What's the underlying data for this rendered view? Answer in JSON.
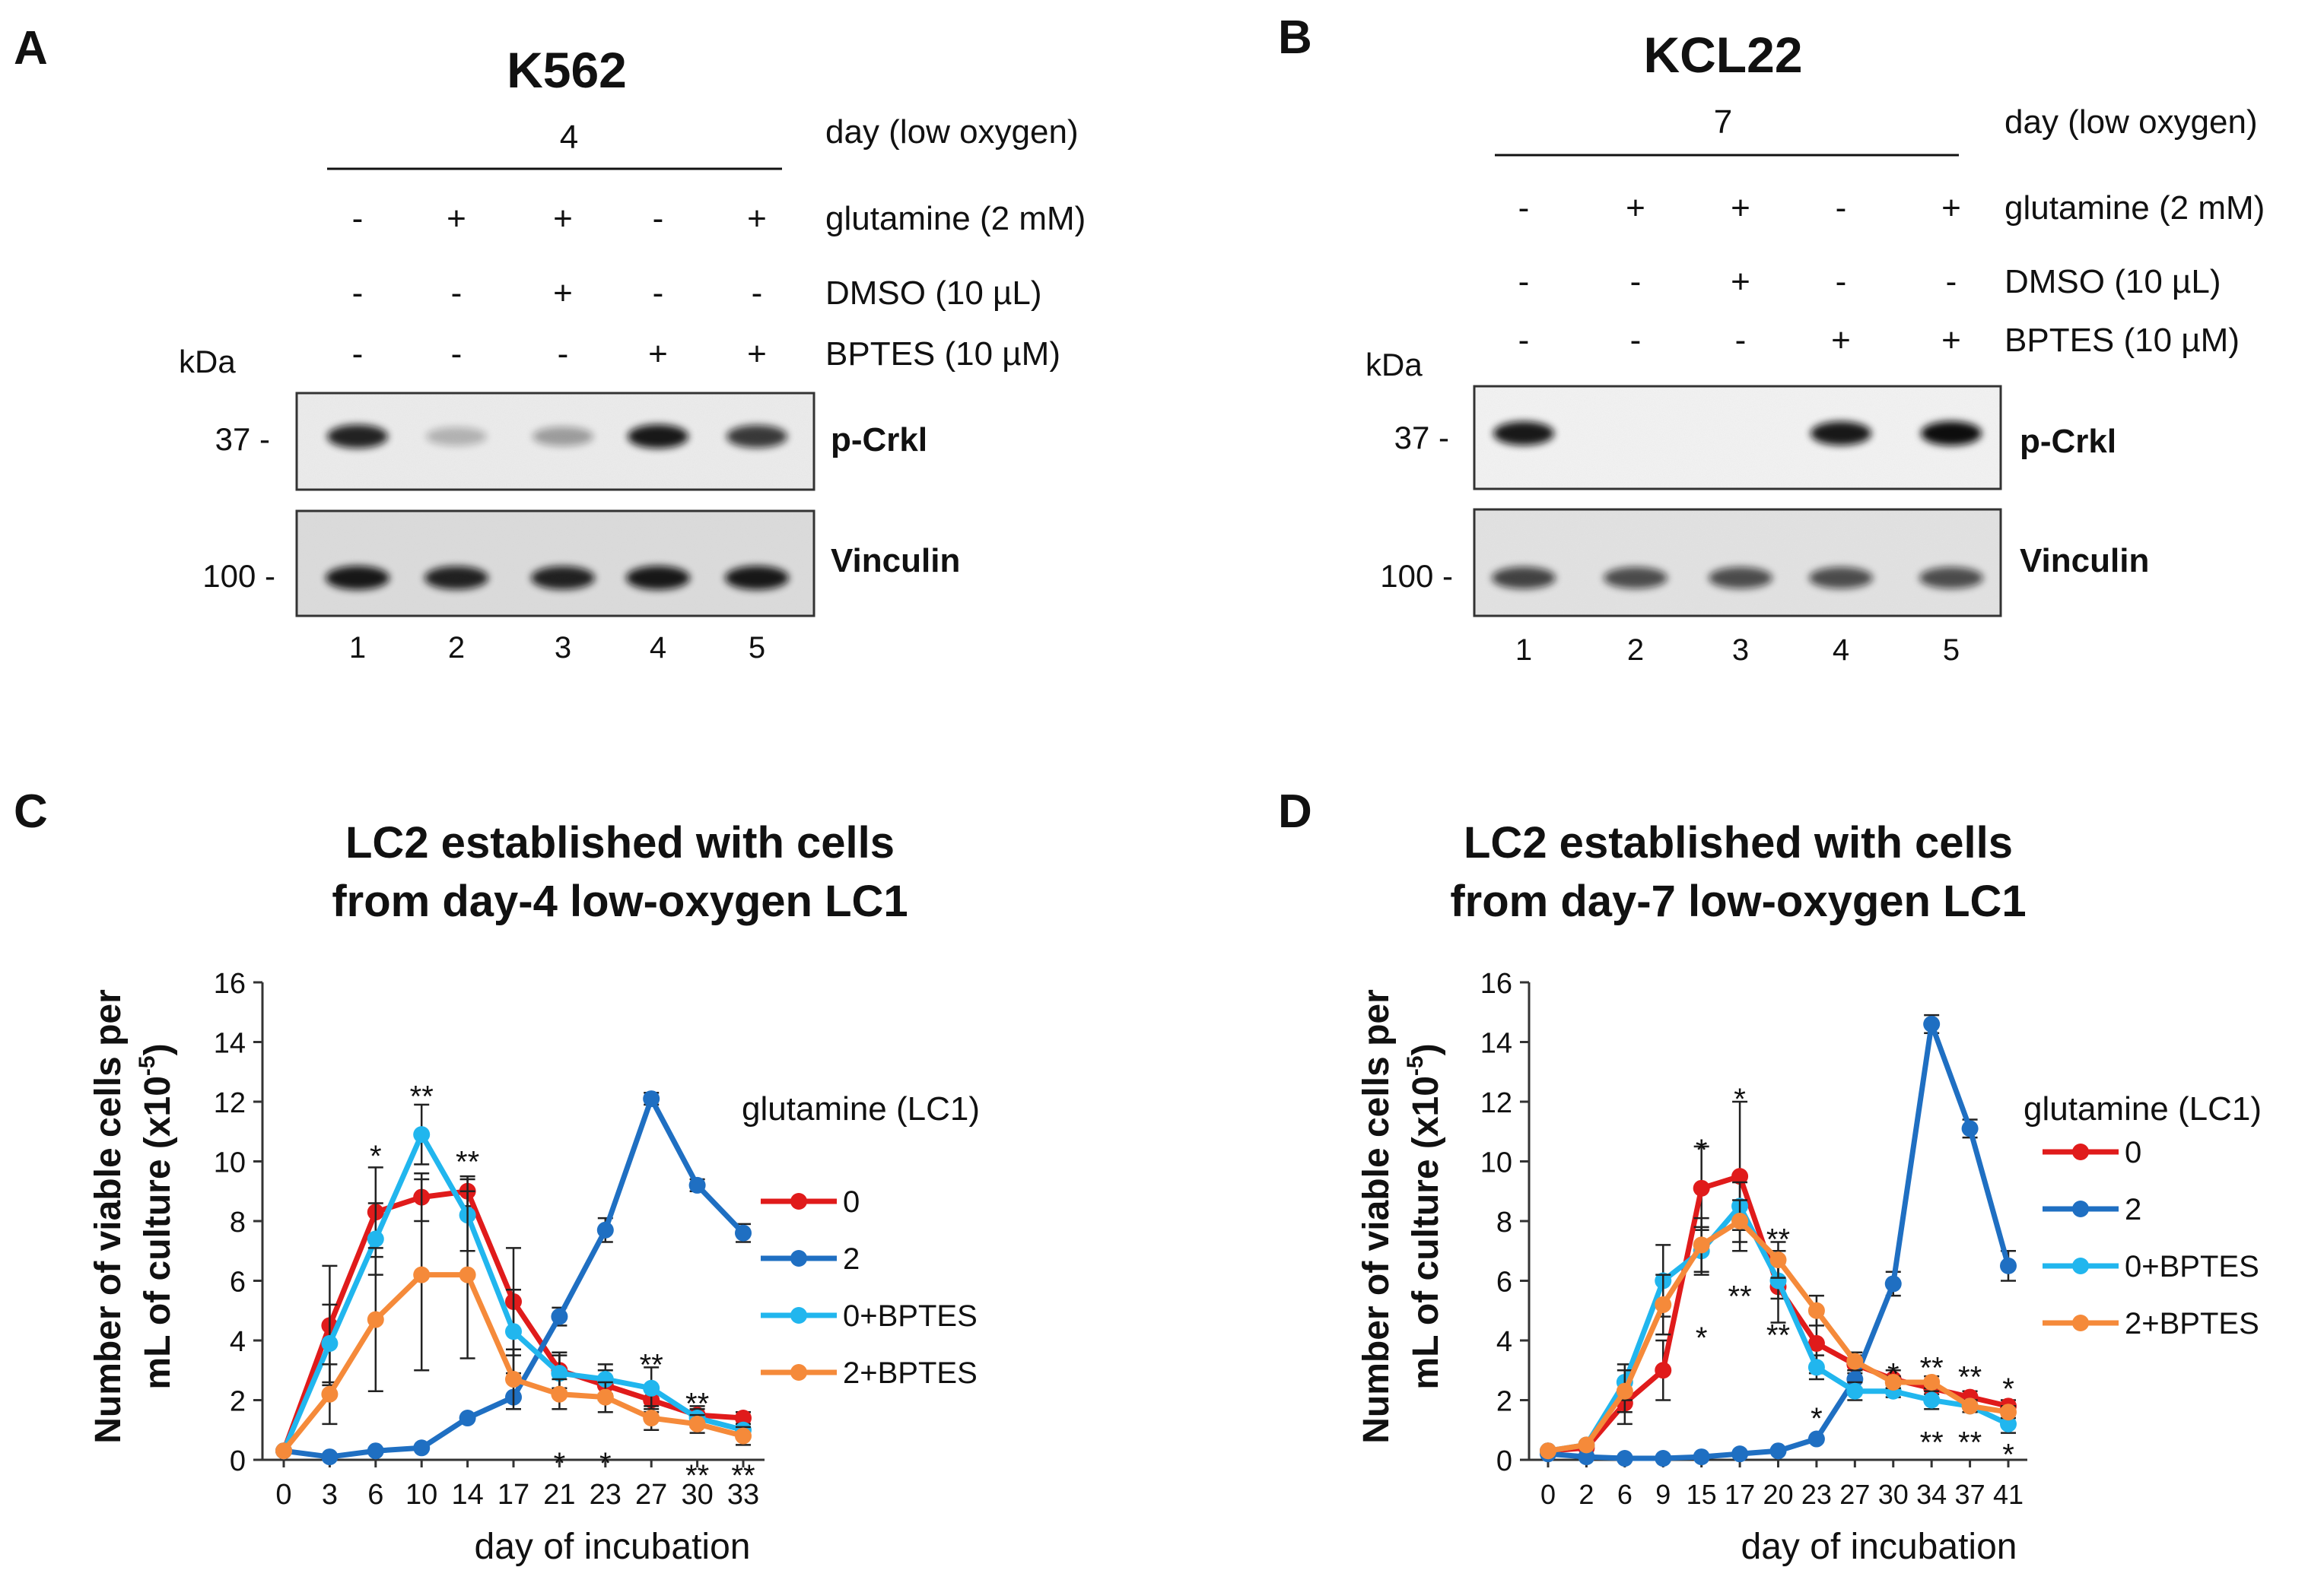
{
  "panels": {
    "A": {
      "letter": "A",
      "cell_line": "K562",
      "day_value": "4",
      "condition_labels": [
        "day (low oxygen)",
        "glutamine (2 mM)",
        "DMSO (10 µL)",
        "BPTES (10 µM)"
      ],
      "glutamine": [
        "-",
        "+",
        "+",
        "-",
        "+"
      ],
      "dmso": [
        "-",
        "-",
        "+",
        "-",
        "-"
      ],
      "bptes": [
        "-",
        "-",
        "-",
        "+",
        "+"
      ],
      "kda_label": "kDa",
      "marker_top": "37 -",
      "marker_bottom": "100 -",
      "band_top_label": "p-Crkl",
      "band_bottom_label": "Vinculin",
      "lanes": [
        "1",
        "2",
        "3",
        "4",
        "5"
      ],
      "pcrkl_intensity": [
        0.9,
        0.25,
        0.35,
        0.95,
        0.8
      ],
      "vinculin_intensity": [
        0.95,
        0.9,
        0.9,
        0.95,
        0.95
      ]
    },
    "B": {
      "letter": "B",
      "cell_line": "KCL22",
      "day_value": "7",
      "condition_labels": [
        "day (low oxygen)",
        "glutamine (2 mM)",
        "DMSO (10 µL)",
        "BPTES (10 µM)"
      ],
      "glutamine": [
        "-",
        "+",
        "+",
        "-",
        "+"
      ],
      "dmso": [
        "-",
        "-",
        "+",
        "-",
        "-"
      ],
      "bptes": [
        "-",
        "-",
        "-",
        "+",
        "+"
      ],
      "kda_label": "kDa",
      "marker_top": "37 -",
      "marker_bottom": "100 -",
      "band_top_label": "p-Crkl",
      "band_bottom_label": "Vinculin",
      "lanes": [
        "1",
        "2",
        "3",
        "4",
        "5"
      ],
      "pcrkl_intensity": [
        0.95,
        0.0,
        0.0,
        0.95,
        1.0
      ],
      "vinculin_intensity": [
        0.75,
        0.7,
        0.7,
        0.7,
        0.7
      ]
    }
  },
  "chart_data": [
    {
      "letter": "C",
      "type": "line",
      "title": [
        "LC2 established with cells",
        "from day-4 low-oxygen LC1"
      ],
      "ylabel": [
        "Number of viable cells per",
        "mL of culture (x10"
      ],
      "ylabel_sup": "-5",
      "xlabel": "day of incubation",
      "categories": [
        "0",
        "3",
        "6",
        "10",
        "14",
        "17",
        "21",
        "23",
        "27",
        "30",
        "33"
      ],
      "ylim": [
        0,
        16
      ],
      "yticks": [
        "0",
        "2",
        "4",
        "6",
        "8",
        "10",
        "12",
        "14",
        "16"
      ],
      "legend_title": "glutamine (LC1)",
      "series": [
        {
          "name": "0",
          "color": "#e01b1b",
          "values": [
            0.3,
            4.5,
            8.3,
            8.8,
            9.0,
            5.3,
            3.0,
            2.5,
            2.0,
            1.5,
            1.4
          ],
          "err": [
            0,
            2.0,
            1.5,
            0.8,
            0.5,
            1.8,
            0.6,
            0.5,
            0.4,
            0.3,
            0.2
          ]
        },
        {
          "name": "2",
          "color": "#1f6fc2",
          "values": [
            0.3,
            0.1,
            0.3,
            0.4,
            1.4,
            2.1,
            4.8,
            7.7,
            12.1,
            9.2,
            7.6
          ],
          "err": [
            0,
            0,
            0,
            0,
            0,
            0,
            0.3,
            0.4,
            0.2,
            0.2,
            0.3
          ]
        },
        {
          "name": "0+BPTES",
          "color": "#21b6ee",
          "values": [
            0.3,
            3.9,
            7.4,
            10.9,
            8.2,
            4.3,
            2.9,
            2.7,
            2.4,
            1.4,
            1.0
          ],
          "err": [
            0,
            1.3,
            1.2,
            1.0,
            1.2,
            1.4,
            0.6,
            0.5,
            0.7,
            0.3,
            0.2
          ]
        },
        {
          "name": "2+BPTES",
          "color": "#f58a3a",
          "values": [
            0.3,
            2.2,
            4.7,
            6.2,
            6.2,
            2.7,
            2.2,
            2.1,
            1.4,
            1.2,
            0.8
          ],
          "err": [
            0,
            1.0,
            2.4,
            3.2,
            2.8,
            1.0,
            0.5,
            0.5,
            0.4,
            0.3,
            0.3
          ]
        }
      ],
      "annotations": [
        {
          "text": "*",
          "x": 2,
          "y": 10.4
        },
        {
          "text": "**",
          "x": 3,
          "y": 12.4
        },
        {
          "text": "**",
          "x": 4,
          "y": 10.2
        },
        {
          "text": "*",
          "x": 6,
          "y": 0.1
        },
        {
          "text": "*",
          "x": 7,
          "y": 0.1
        },
        {
          "text": "**",
          "x": 8,
          "y": 3.4
        },
        {
          "text": "**",
          "x": 9,
          "y": 2.1
        },
        {
          "text": "**",
          "x": 9,
          "y": -0.3
        },
        {
          "text": "**",
          "x": 10,
          "y": -0.3
        }
      ]
    },
    {
      "letter": "D",
      "type": "line",
      "title": [
        "LC2 established with cells",
        "from day-7 low-oxygen LC1"
      ],
      "ylabel": [
        "Number of viable cells per",
        "mL of culture (x10"
      ],
      "ylabel_sup": "-5",
      "xlabel": "day of incubation",
      "categories": [
        "0",
        "2",
        "6",
        "9",
        "15",
        "17",
        "20",
        "23",
        "27",
        "30",
        "34",
        "37",
        "41"
      ],
      "ylim": [
        0,
        16
      ],
      "yticks": [
        "0",
        "2",
        "4",
        "6",
        "8",
        "10",
        "12",
        "14",
        "16"
      ],
      "legend_title": "glutamine (LC1)",
      "series": [
        {
          "name": "0",
          "color": "#e01b1b",
          "values": [
            0.3,
            0.4,
            1.9,
            3.0,
            9.1,
            9.5,
            5.8,
            3.9,
            3.2,
            2.7,
            2.4,
            2.1,
            1.8
          ],
          "err": [
            0,
            0,
            0.7,
            1.0,
            1.4,
            2.5,
            1.2,
            1.0,
            0.3,
            0.3,
            0.2,
            0.2,
            0.2
          ]
        },
        {
          "name": "2",
          "color": "#1f6fc2",
          "values": [
            0.2,
            0.1,
            0.05,
            0.05,
            0.1,
            0.2,
            0.3,
            0.7,
            2.7,
            5.9,
            14.6,
            11.1,
            6.5
          ],
          "err": [
            0,
            0,
            0,
            0,
            0,
            0,
            0,
            0,
            0.3,
            0.4,
            0.3,
            0.3,
            0.5
          ]
        },
        {
          "name": "0+BPTES",
          "color": "#21b6ee",
          "values": [
            0.3,
            0.5,
            2.6,
            6.0,
            7.0,
            8.5,
            6.0,
            3.1,
            2.3,
            2.3,
            2.0,
            1.8,
            1.2
          ],
          "err": [
            0,
            0,
            0.6,
            1.2,
            0.8,
            0.8,
            0.6,
            0.4,
            0.3,
            0.2,
            0.3,
            0.2,
            0.3
          ]
        },
        {
          "name": "2+BPTES",
          "color": "#f58a3a",
          "values": [
            0.3,
            0.5,
            2.3,
            5.2,
            7.2,
            8.0,
            6.7,
            5.0,
            3.3,
            2.6,
            2.6,
            1.8,
            1.6
          ],
          "err": [
            0,
            0,
            0.7,
            1.0,
            0.9,
            0.7,
            0.6,
            0.5,
            0.3,
            0.2,
            0.2,
            0.2,
            0.2
          ]
        }
      ],
      "annotations": [
        {
          "text": "*",
          "x": 4,
          "y": 10.6
        },
        {
          "text": "*",
          "x": 5,
          "y": 12.3
        },
        {
          "text": "**",
          "x": 6,
          "y": 7.6
        },
        {
          "text": "**",
          "x": 5,
          "y": 5.7
        },
        {
          "text": "*",
          "x": 4,
          "y": 4.3
        },
        {
          "text": "**",
          "x": 6,
          "y": 4.4
        },
        {
          "text": "*",
          "x": 7,
          "y": 1.6
        },
        {
          "text": "*",
          "x": 9,
          "y": 3.1
        },
        {
          "text": "**",
          "x": 10,
          "y": 3.3
        },
        {
          "text": "**",
          "x": 11,
          "y": 3.0
        },
        {
          "text": "*",
          "x": 12,
          "y": 2.6
        },
        {
          "text": "**",
          "x": 10,
          "y": 0.8
        },
        {
          "text": "**",
          "x": 11,
          "y": 0.8
        },
        {
          "text": "*",
          "x": 12,
          "y": 0.4
        }
      ]
    }
  ]
}
